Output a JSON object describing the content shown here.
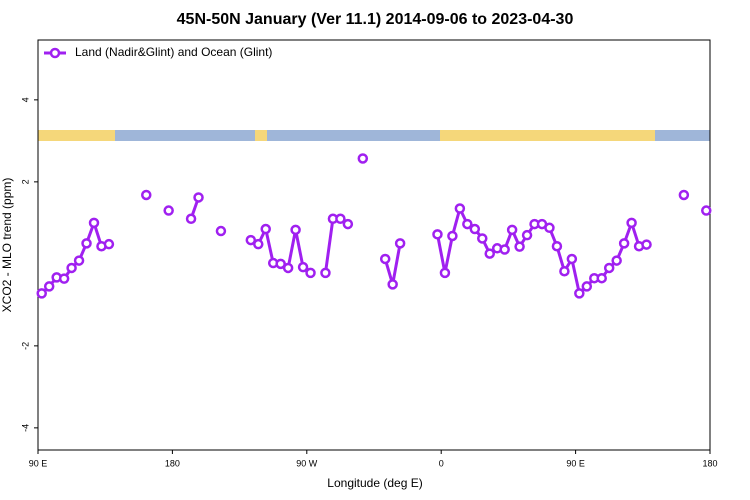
{
  "chart_data": {
    "type": "line",
    "title": "45N-50N January (Ver 11.1)   2014-09-06 to 2023-04-30",
    "x_label": "Longitude (deg E)",
    "y_label": "XCO2 - MLO trend (ppm)",
    "xlim": [
      -270,
      180
    ],
    "ylim": [
      -4.54,
      5.46
    ],
    "xticks": [
      {
        "value": -270,
        "label": "90 E"
      },
      {
        "value": -180,
        "label": "180"
      },
      {
        "value": -90,
        "label": "90 W"
      },
      0,
      {
        "value": 90,
        "label": "90 E"
      },
      180
    ],
    "yticks": [
      -4,
      -2,
      2,
      4
    ],
    "legend": "top-left",
    "x": [
      -267.5,
      -262.5,
      -257.5,
      -252.5,
      -247.5,
      -242.5,
      -237.5,
      -232.5,
      -227.5,
      -222.5,
      -217.5,
      -197.5,
      -192.5,
      -182.5,
      -177.5,
      -167.5,
      -162.5,
      -157.5,
      -147.5,
      -142.5,
      -127.5,
      -122.5,
      -117.5,
      -112.5,
      -107.5,
      -102.5,
      -97.5,
      -92.5,
      -87.5,
      -82.5,
      -77.5,
      -72.5,
      -67.5,
      -62.5,
      -57.5,
      -52.5,
      -47.5,
      -37.5,
      -32.5,
      -27.5,
      -22.5,
      -2.5,
      2.5,
      7.5,
      12.5,
      17.5,
      22.5,
      27.5,
      32.5,
      37.5,
      42.5,
      47.5,
      52.5,
      57.5,
      62.5,
      67.5,
      72.5,
      77.5,
      82.5,
      87.5,
      92.5,
      97.5,
      102.5,
      107.5,
      112.5,
      117.5,
      122.5,
      127.5,
      132.5,
      137.5,
      142.5,
      162.5,
      167.5,
      177.5
    ],
    "series": [
      {
        "name": "Land (Nadir&Glint) and Ocean (Glint)",
        "color": "#a020f0",
        "values": [
          -0.72,
          -0.55,
          -0.33,
          -0.36,
          -0.1,
          0.08,
          0.5,
          1.0,
          0.43,
          0.48,
          null,
          1.68,
          null,
          1.3,
          null,
          1.1,
          1.62,
          null,
          0.8,
          null,
          0.58,
          0.48,
          0.85,
          0.02,
          0.0,
          -0.1,
          0.83,
          -0.08,
          -0.22,
          null,
          -0.22,
          1.1,
          1.1,
          0.97,
          null,
          2.57,
          null,
          0.12,
          -0.5,
          0.5,
          null,
          0.72,
          -0.22,
          0.68,
          1.35,
          0.97,
          0.85,
          0.62,
          0.25,
          0.38,
          0.35,
          0.83,
          0.42,
          0.7,
          0.97,
          0.97,
          0.88,
          0.43,
          -0.18,
          0.12,
          -0.72,
          -0.55,
          -0.35,
          -0.35,
          -0.1,
          0.08,
          0.5,
          1.0,
          0.43,
          0.47,
          null,
          1.68,
          null,
          1.3
        ]
      }
    ]
  }
}
